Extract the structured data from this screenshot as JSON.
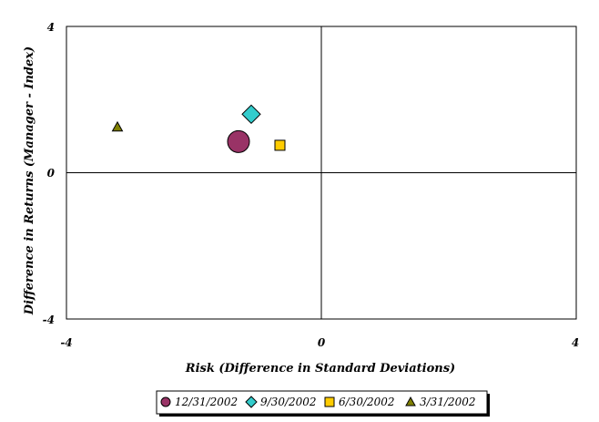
{
  "chart_data": {
    "type": "scatter",
    "title": "",
    "xlabel": "Risk (Difference in Standard Deviations)",
    "ylabel": "Difference in Returns (Manager - Index)",
    "xlim": [
      -4,
      4
    ],
    "ylim": [
      -4,
      4
    ],
    "x_ticks": [
      "-4",
      "0",
      "4"
    ],
    "y_ticks": [
      "4",
      "0",
      "-4"
    ],
    "grid": false,
    "legend_position": "bottom",
    "series": [
      {
        "name": "12/31/2002",
        "marker": "circle",
        "color": "#993366",
        "x": -1.3,
        "y": 0.85
      },
      {
        "name": "9/30/2002",
        "marker": "diamond",
        "color": "#33cccc",
        "x": -1.1,
        "y": 1.6
      },
      {
        "name": "6/30/2002",
        "marker": "square",
        "color": "#ffcc00",
        "x": -0.65,
        "y": 0.75
      },
      {
        "name": "3/31/2002",
        "marker": "triangle",
        "color": "#808000",
        "x": -3.2,
        "y": 1.25
      }
    ]
  }
}
